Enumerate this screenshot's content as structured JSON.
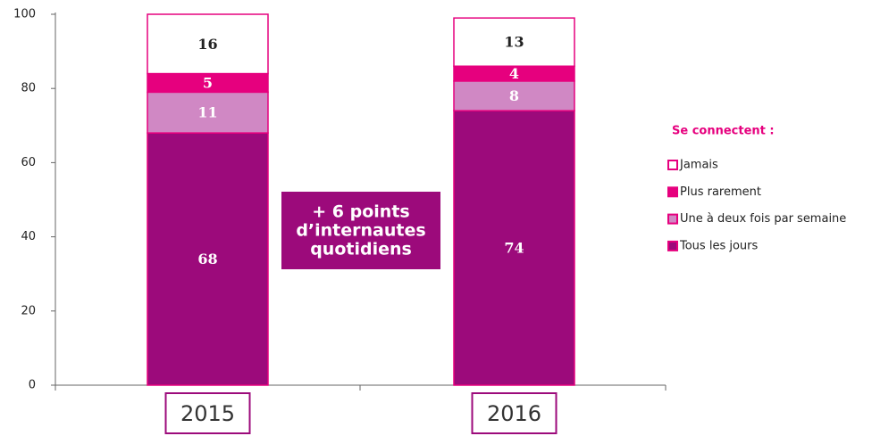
{
  "chart_data": {
    "type": "stacked_bar",
    "categories": [
      "2015",
      "2016"
    ],
    "series": [
      {
        "name": "Jamais",
        "color": "#ffffff",
        "values": [
          16,
          13
        ]
      },
      {
        "name": "Plus rarement",
        "color": "#e6007e",
        "values": [
          5,
          4
        ]
      },
      {
        "name": "Une à deux fois par semaine",
        "color": "#d088c4",
        "values": [
          11,
          8
        ]
      },
      {
        "name": "Tous les jours",
        "color": "#9c0a7b",
        "values": [
          68,
          74
        ]
      }
    ],
    "edgecolor": "#e6007e",
    "ylim": [
      0,
      100
    ],
    "yticks": [
      0,
      20,
      40,
      60,
      80,
      100
    ],
    "legend_title": "Se connectent :",
    "annotation": [
      "+ 6 points",
      "d’internautes",
      "quotidiens"
    ]
  }
}
